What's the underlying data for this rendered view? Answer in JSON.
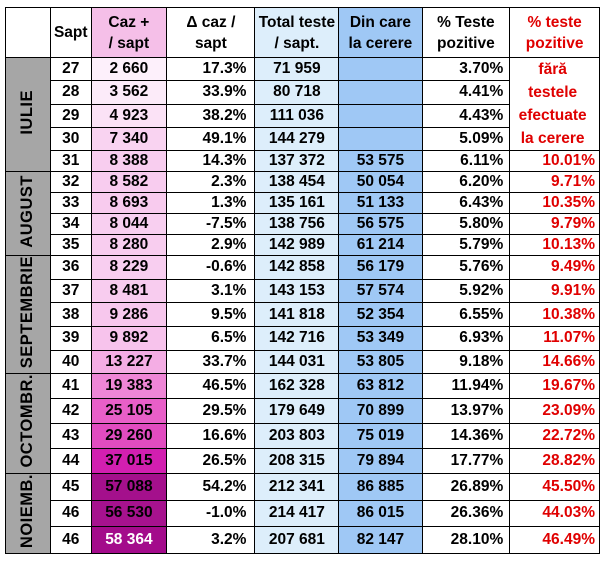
{
  "headers": {
    "week": "Sapt",
    "cases": [
      "Caz +",
      "/ sapt"
    ],
    "delta": [
      "Δ caz /",
      "sapt"
    ],
    "tests": [
      "Total teste",
      "/ sapt."
    ],
    "requested": [
      "Din care",
      "la cerere"
    ],
    "positive": [
      "% Teste",
      "pozitive"
    ],
    "positive_excl": [
      "% teste",
      "pozitive"
    ]
  },
  "note_lines": [
    "fără",
    "testele",
    "efectuate",
    "la cerere"
  ],
  "months": [
    {
      "label": "IULIE",
      "rows": 5
    },
    {
      "label": "AUGUST",
      "rows": 4
    },
    {
      "label": "SEPTEMBRIE",
      "rows": 5
    },
    {
      "label": "OCTOMBR.",
      "rows": 4
    },
    {
      "label": "NOIEMB.",
      "rows": 3
    }
  ],
  "rows": [
    {
      "week": "27",
      "cases": "2 660",
      "delta": "17.3%",
      "tests": "71 959",
      "requested": "",
      "pos": "3.70%",
      "pos2": "",
      "cases_bg": "#fdf0fb",
      "cases_color": "#000000"
    },
    {
      "week": "28",
      "cases": "3 562",
      "delta": "33.9%",
      "tests": "80 718",
      "requested": "",
      "pos": "4.41%",
      "pos2": "",
      "cases_bg": "#fcebf9",
      "cases_color": "#000000"
    },
    {
      "week": "29",
      "cases": "4 923",
      "delta": "38.2%",
      "tests": "111 036",
      "requested": "",
      "pos": "4.43%",
      "pos2": "",
      "cases_bg": "#fbe2f6",
      "cases_color": "#000000"
    },
    {
      "week": "30",
      "cases": "7 340",
      "delta": "49.1%",
      "tests": "144 279",
      "requested": "",
      "pos": "5.09%",
      "pos2": "",
      "cases_bg": "#f9d3f1",
      "cases_color": "#000000"
    },
    {
      "week": "31",
      "cases": "8 388",
      "delta": "14.3%",
      "tests": "137 372",
      "requested": "53 575",
      "pos": "6.11%",
      "pos2": "10.01%",
      "cases_bg": "#f8cdef",
      "cases_color": "#000000"
    },
    {
      "week": "32",
      "cases": "8 582",
      "delta": "2.3%",
      "tests": "138 454",
      "requested": "50 054",
      "pos": "6.20%",
      "pos2": "9.71%",
      "cases_bg": "#f8ccef",
      "cases_color": "#000000"
    },
    {
      "week": "33",
      "cases": "8 693",
      "delta": "1.3%",
      "tests": "135 161",
      "requested": "51 133",
      "pos": "6.43%",
      "pos2": "10.35%",
      "cases_bg": "#f8cbee",
      "cases_color": "#000000"
    },
    {
      "week": "34",
      "cases": "8 044",
      "delta": "-7.5%",
      "tests": "138 756",
      "requested": "56 575",
      "pos": "5.80%",
      "pos2": "9.79%",
      "cases_bg": "#f8cff0",
      "cases_color": "#000000"
    },
    {
      "week": "35",
      "cases": "8 280",
      "delta": "2.9%",
      "tests": "142 989",
      "requested": "61 214",
      "pos": "5.79%",
      "pos2": "10.13%",
      "cases_bg": "#f8cdef",
      "cases_color": "#000000"
    },
    {
      "week": "36",
      "cases": "8 229",
      "delta": "-0.6%",
      "tests": "142 858",
      "requested": "56 179",
      "pos": "5.76%",
      "pos2": "9.49%",
      "cases_bg": "#f8cef0",
      "cases_color": "#000000"
    },
    {
      "week": "37",
      "cases": "8 481",
      "delta": "3.1%",
      "tests": "143 153",
      "requested": "57 574",
      "pos": "5.92%",
      "pos2": "9.91%",
      "cases_bg": "#f8ccef",
      "cases_color": "#000000"
    },
    {
      "week": "38",
      "cases": "9 286",
      "delta": "9.5%",
      "tests": "141 818",
      "requested": "52 354",
      "pos": "6.55%",
      "pos2": "10.38%",
      "cases_bg": "#f7c7ed",
      "cases_color": "#000000"
    },
    {
      "week": "39",
      "cases": "9 892",
      "delta": "6.5%",
      "tests": "142 716",
      "requested": "53 349",
      "pos": "6.93%",
      "pos2": "11.07%",
      "cases_bg": "#f7c3ec",
      "cases_color": "#000000"
    },
    {
      "week": "40",
      "cases": "13 227",
      "delta": "33.7%",
      "tests": "144 031",
      "requested": "53 805",
      "pos": "9.18%",
      "pos2": "14.66%",
      "cases_bg": "#f4ade4",
      "cases_color": "#000000"
    },
    {
      "week": "41",
      "cases": "19 383",
      "delta": "46.5%",
      "tests": "162 328",
      "requested": "63 812",
      "pos": "11.94%",
      "pos2": "19.67%",
      "cases_bg": "#ee86d6",
      "cases_color": "#000000"
    },
    {
      "week": "42",
      "cases": "25 105",
      "delta": "29.5%",
      "tests": "179 649",
      "requested": "70 899",
      "pos": "13.97%",
      "pos2": "23.09%",
      "cases_bg": "#e85fc8",
      "cases_color": "#000000"
    },
    {
      "week": "43",
      "cases": "29 260",
      "delta": "16.6%",
      "tests": "203 803",
      "requested": "75 019",
      "pos": "14.36%",
      "pos2": "22.72%",
      "cases_bg": "#e14cc0",
      "cases_color": "#000000"
    },
    {
      "week": "44",
      "cases": "37 015",
      "delta": "26.5%",
      "tests": "208 315",
      "requested": "79 894",
      "pos": "17.77%",
      "pos2": "28.82%",
      "cases_bg": "#d21fb0",
      "cases_color": "#000000"
    },
    {
      "week": "45",
      "cases": "57 088",
      "delta": "54.2%",
      "tests": "212 341",
      "requested": "86 885",
      "pos": "26.89%",
      "pos2": "45.50%",
      "cases_bg": "#a4108c",
      "cases_color": "#000000"
    },
    {
      "week": "46",
      "cases": "56 530",
      "delta": "-1.0%",
      "tests": "214 417",
      "requested": "86 015",
      "pos": "26.36%",
      "pos2": "44.03%",
      "cases_bg": "#a6128e",
      "cases_color": "#000000"
    },
    {
      "week": "46",
      "cases": "58 364",
      "delta": "3.2%",
      "tests": "207 681",
      "requested": "82 147",
      "pos": "28.10%",
      "pos2": "46.49%",
      "cases_bg": "#a30b8b",
      "cases_color": "#ffffff"
    }
  ]
}
